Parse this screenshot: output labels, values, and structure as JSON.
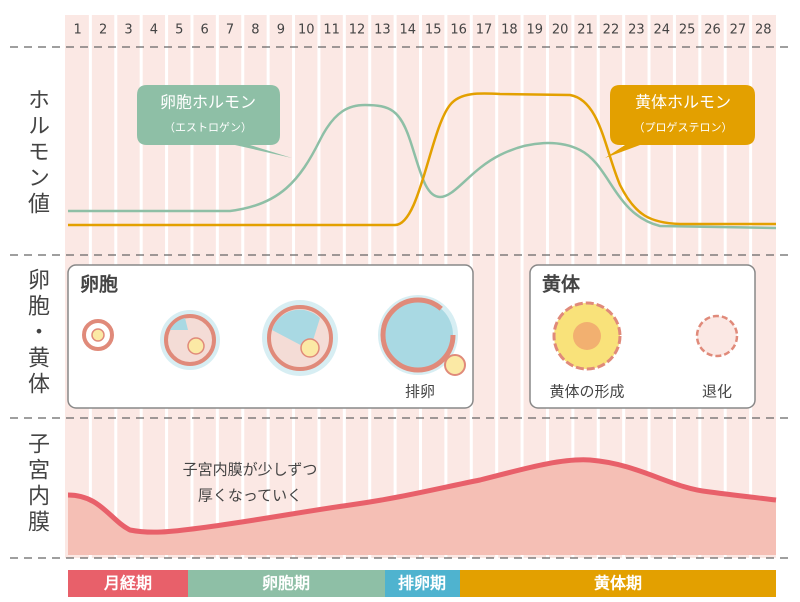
{
  "days": [
    "1",
    "2",
    "3",
    "4",
    "5",
    "6",
    "7",
    "8",
    "9",
    "10",
    "11",
    "12",
    "13",
    "14",
    "15",
    "16",
    "17",
    "18",
    "19",
    "20",
    "21",
    "22",
    "23",
    "24",
    "25",
    "26",
    "27",
    "28"
  ],
  "row_labels": [
    "ホルモン値",
    "卵胞・黄体",
    "子宮内膜"
  ],
  "callouts": [
    {
      "title": "卵胞ホルモン",
      "subtitle": "（エストロゲン）"
    },
    {
      "title": "黄体ホルモン",
      "subtitle": "（プロゲステロン）"
    }
  ],
  "panels": [
    {
      "title": "卵胞",
      "labels": [
        "排卵"
      ]
    },
    {
      "title": "黄体",
      "labels": [
        "黄体の形成",
        "退化"
      ]
    }
  ],
  "endometrium_note": [
    "子宮内膜が少しずつ",
    "厚くなっていく"
  ],
  "phases": [
    "月経期",
    "卵胞期",
    "排卵期",
    "黄体期"
  ]
}
